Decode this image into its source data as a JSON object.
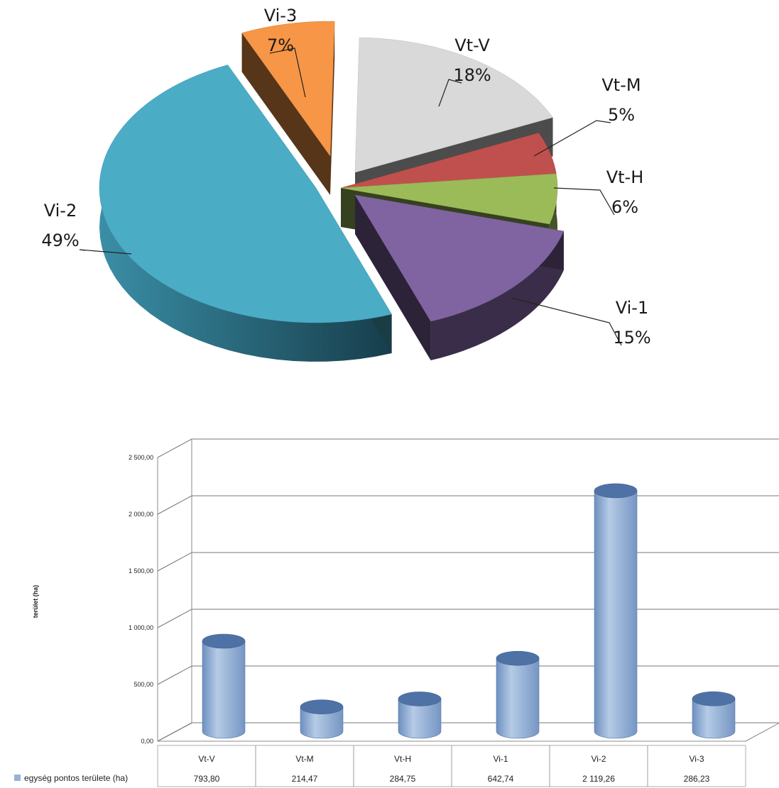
{
  "chart_data": [
    {
      "type": "pie",
      "title": "",
      "slices": [
        {
          "label": "Vt-V",
          "percent": "18%",
          "value": 18,
          "color": "#d9d9d9"
        },
        {
          "label": "Vt-M",
          "percent": "5%",
          "value": 5,
          "color": "#c0504d"
        },
        {
          "label": "Vt-H",
          "percent": "6%",
          "value": 6,
          "color": "#9bbb59"
        },
        {
          "label": "Vi-1",
          "percent": "15%",
          "value": 15,
          "color": "#8064a2"
        },
        {
          "label": "Vi-2",
          "percent": "49%",
          "value": 49,
          "color": "#4bacc6"
        },
        {
          "label": "Vi-3",
          "percent": "7%",
          "value": 7,
          "color": "#f79646"
        }
      ]
    },
    {
      "type": "bar",
      "title": "",
      "ylabel": "terület (ha)",
      "ylim": [
        0,
        2500
      ],
      "yticks": [
        "0,00",
        "500,00",
        "1 000,00",
        "1 500,00",
        "2 000,00",
        "2 500,00"
      ],
      "categories": [
        "Vt-V",
        "Vt-M",
        "Vt-H",
        "Vi-1",
        "Vi-2",
        "Vi-3"
      ],
      "series": [
        {
          "name": "egység pontos területe (ha)",
          "values": [
            793.8,
            214.47,
            284.75,
            642.74,
            2119.26,
            286.23
          ],
          "value_labels": [
            "793,80",
            "214,47",
            "284,75",
            "642,74",
            "2 119,26",
            "286,23"
          ],
          "color": "#95b3d7"
        }
      ]
    }
  ]
}
